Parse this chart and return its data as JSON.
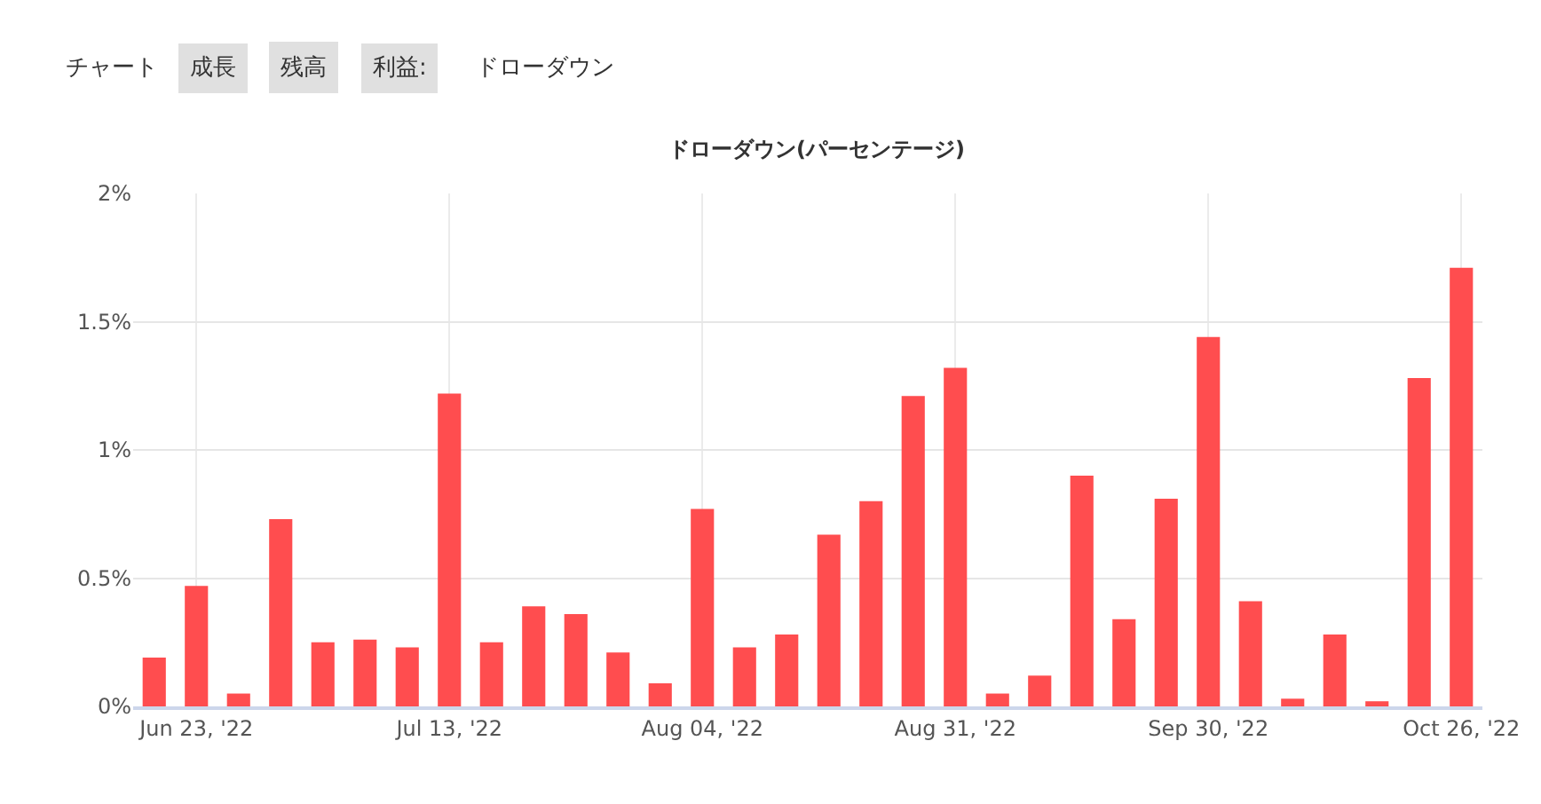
{
  "chart_data": {
    "type": "bar",
    "title": "ドローダウン(パーセンテージ)",
    "annotations": [
      "チャート",
      "成長",
      "残高",
      "利益:",
      "ドローダウン"
    ],
    "categories": [
      null,
      "Jun 23, '22",
      null,
      null,
      null,
      null,
      null,
      "Jul 13, '22",
      null,
      null,
      null,
      null,
      null,
      "Aug 04, '22",
      null,
      null,
      null,
      null,
      null,
      "Aug 31, '22",
      null,
      null,
      null,
      null,
      null,
      "Sep 30, '22",
      null,
      null,
      null,
      null,
      null,
      "Oct 26, '22"
    ],
    "values": [
      0.19,
      0.47,
      0.05,
      0.73,
      0.25,
      0.26,
      0.23,
      1.22,
      0.25,
      0.39,
      0.36,
      0.21,
      0.09,
      0.77,
      0.23,
      0.28,
      0.67,
      0.8,
      1.21,
      1.32,
      0.05,
      0.12,
      0.9,
      0.34,
      0.81,
      1.44,
      0.41,
      0.03,
      0.28,
      0.02,
      1.28,
      1.71
    ],
    "color": "#ff4d4f",
    "ylim": [
      0,
      2
    ],
    "yticks": [
      {
        "value": 0,
        "label": "0%"
      },
      {
        "value": 0.5,
        "label": "0.5%"
      },
      {
        "value": 1,
        "label": "1%"
      },
      {
        "value": 1.5,
        "label": "1.5%"
      },
      {
        "value": 2,
        "label": "2%"
      }
    ],
    "grid": true
  }
}
